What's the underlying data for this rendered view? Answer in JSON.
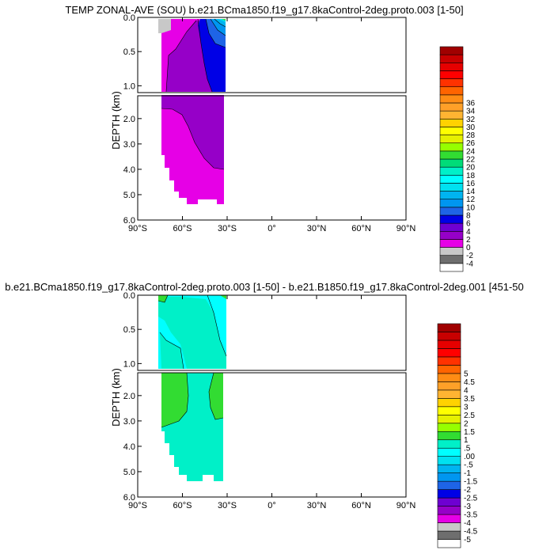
{
  "chart_data": [
    {
      "type": "contour",
      "title": "TEMP ZONAL-AVE (SOU) b.e21.BCma1850.f19_g17.8kaControl-2deg.proto.003 [1-50]",
      "ylabel": "DEPTH (km)",
      "xlim": [
        -90,
        90
      ],
      "ylim_upper": [
        0,
        1.1
      ],
      "ylim_lower": [
        1.1,
        6
      ],
      "x_ticks": [
        "90°S",
        "60°S",
        "30°S",
        "0°",
        "30°N",
        "60°N",
        "90°N"
      ],
      "y_ticks_upper": [
        "0.0",
        "0.5",
        "1.0"
      ],
      "y_ticks_lower": [
        "2.0",
        "3.0",
        "4.0",
        "5.0",
        "6.0"
      ],
      "colorbar_labels": [
        "-4",
        "-2",
        "0",
        "2",
        "4",
        "6",
        "8",
        "10",
        "12",
        "14",
        "16",
        "18",
        "20",
        "22",
        "24",
        "26",
        "28",
        "30",
        "32",
        "34",
        "36"
      ],
      "colorbar_colors": [
        "#ffffff",
        "#6e6e6e",
        "#c8c8c8",
        "#e600e6",
        "#9600c8",
        "#6e00d2",
        "#0000e6",
        "#1e64e6",
        "#0096f0",
        "#00b4f0",
        "#00e1f0",
        "#00ffff",
        "#00f0c8",
        "#00dc78",
        "#32dc32",
        "#96ff00",
        "#e6f000",
        "#ffff00",
        "#ffd200",
        "#ffb432",
        "#ffa028",
        "#ff8c14",
        "#ff6400",
        "#ff3200",
        "#ff0000",
        "#e60000",
        "#c80000",
        "#a00000"
      ]
    },
    {
      "type": "contour",
      "title": "b.e21.BCma1850.f19_g17.8kaControl-2deg.proto.003 [1-50] - b.e21.B1850.f19_g17.8kaControl-2deg.001 [451-50",
      "ylabel": "DEPTH (km)",
      "xlim": [
        -90,
        90
      ],
      "ylim_upper": [
        0,
        1.1
      ],
      "ylim_lower": [
        1.1,
        6
      ],
      "x_ticks": [
        "90°S",
        "60°S",
        "30°S",
        "0°",
        "30°N",
        "60°N",
        "90°N"
      ],
      "y_ticks_upper": [
        "0.0",
        "0.5",
        "1.0"
      ],
      "y_ticks_lower": [
        "2.0",
        "3.0",
        "4.0",
        "5.0",
        "6.0"
      ],
      "colorbar_labels": [
        "-5",
        "-4.5",
        "-4",
        "-3.5",
        "-3",
        "-2.5",
        "-2",
        "-1.5",
        "-1",
        "-.5",
        ".00",
        ".5",
        "1",
        "1.5",
        "2",
        "2.5",
        "3",
        "3.5",
        "4",
        "4.5",
        "5"
      ],
      "colorbar_colors": [
        "#ffffff",
        "#6e6e6e",
        "#c8c8c8",
        "#e600e6",
        "#9600c8",
        "#6e00d2",
        "#0000e6",
        "#1e64e6",
        "#0096f0",
        "#00b4f0",
        "#00e1f0",
        "#00ffff",
        "#00f0c8",
        "#32dc32",
        "#96ff00",
        "#e6f000",
        "#ffff00",
        "#ffd200",
        "#ffb432",
        "#ffa028",
        "#ff8c14",
        "#ff6400",
        "#ff3200",
        "#ff0000",
        "#e60000",
        "#c80000",
        "#a00000"
      ]
    }
  ]
}
